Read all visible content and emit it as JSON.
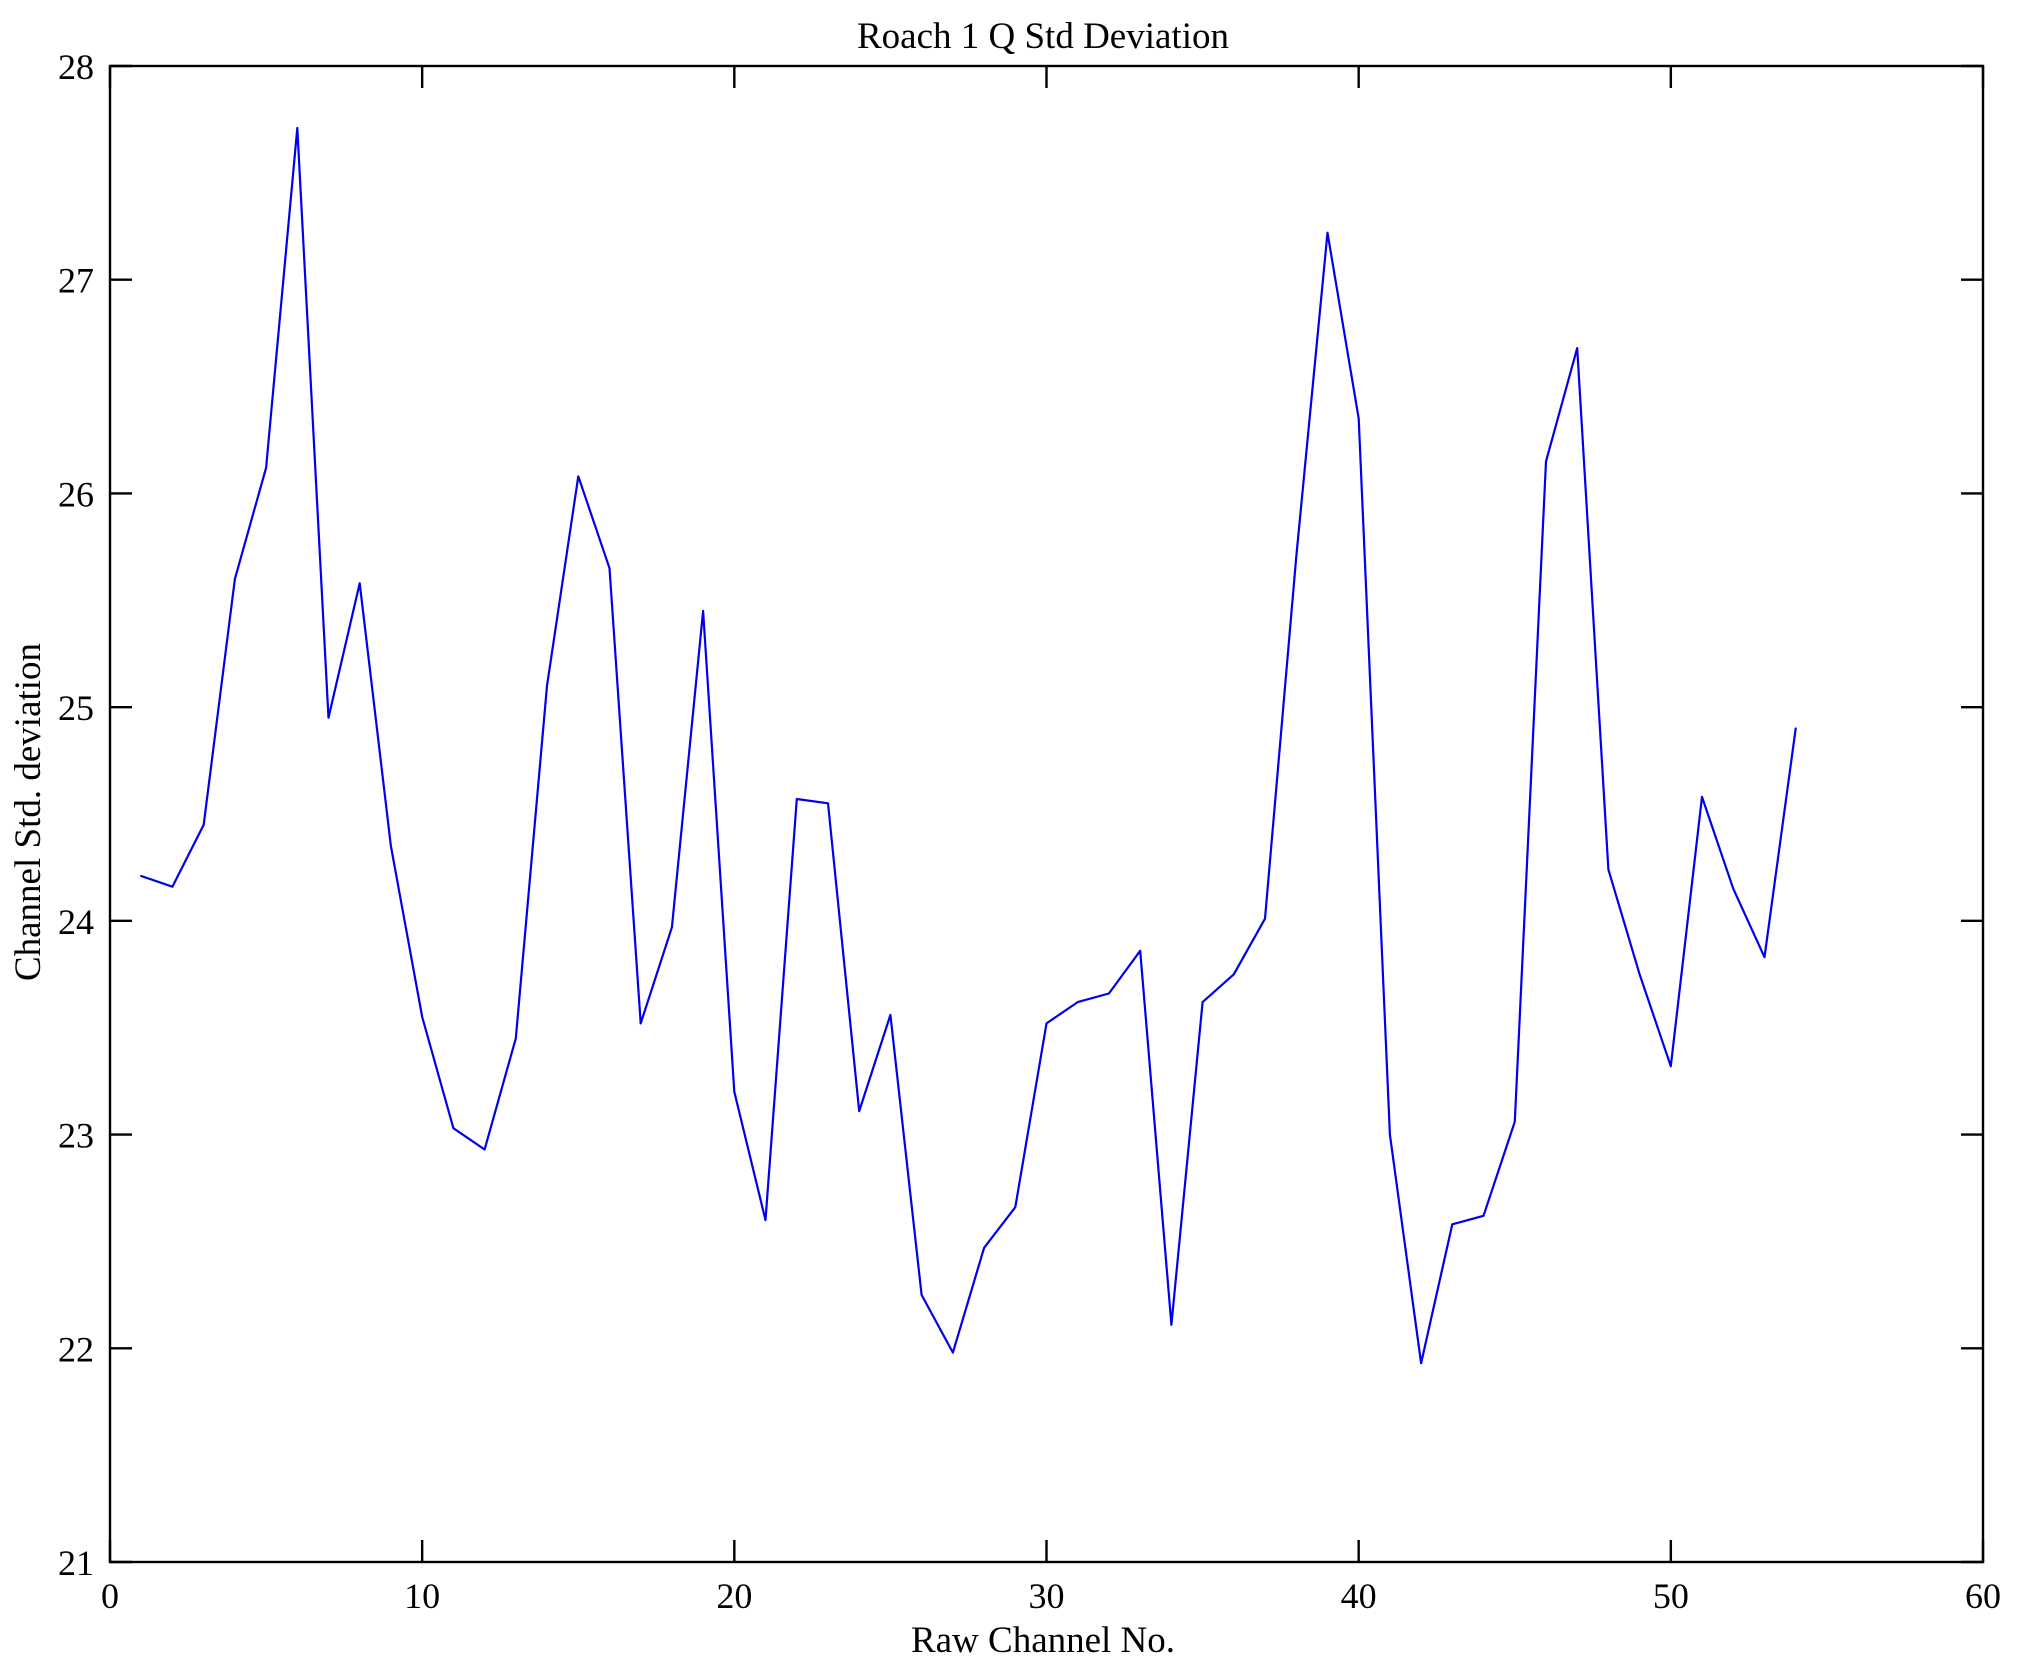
{
  "chart_data": {
    "type": "line",
    "title": "Roach 1 Q Std Deviation",
    "xlabel": "Raw Channel No.",
    "ylabel": "Channel Std. deviation",
    "xlim": [
      0,
      60
    ],
    "ylim": [
      21,
      28
    ],
    "xticks": [
      0,
      10,
      20,
      30,
      40,
      50,
      60
    ],
    "yticks": [
      21,
      22,
      23,
      24,
      25,
      26,
      27,
      28
    ],
    "grid": false,
    "legend": null,
    "line_color": "#0000ee",
    "axis_color": "#000000",
    "background_color": "#ffffff",
    "x": [
      1,
      2,
      3,
      4,
      5,
      6,
      7,
      8,
      9,
      10,
      11,
      12,
      13,
      14,
      15,
      16,
      17,
      18,
      19,
      20,
      21,
      22,
      23,
      24,
      25,
      26,
      27,
      28,
      29,
      30,
      31,
      32,
      33,
      34,
      35,
      36,
      37,
      38,
      39,
      40,
      41,
      42,
      43,
      44,
      45,
      46,
      47,
      48,
      49,
      50,
      51,
      52,
      53,
      54
    ],
    "y": [
      24.21,
      24.16,
      24.45,
      25.6,
      26.12,
      27.71,
      24.95,
      25.58,
      24.35,
      23.55,
      23.03,
      22.93,
      23.45,
      25.1,
      26.08,
      25.65,
      23.52,
      23.97,
      25.45,
      23.2,
      22.6,
      24.57,
      24.55,
      23.11,
      23.56,
      22.25,
      21.98,
      22.47,
      22.66,
      23.52,
      23.62,
      23.66,
      23.86,
      22.11,
      23.62,
      23.75,
      24.01,
      25.7,
      27.22,
      26.35,
      23.0,
      21.93,
      22.58,
      22.62,
      23.06,
      26.15,
      26.68,
      24.24,
      23.75,
      23.32,
      24.58,
      24.15,
      23.83,
      24.9
    ]
  }
}
